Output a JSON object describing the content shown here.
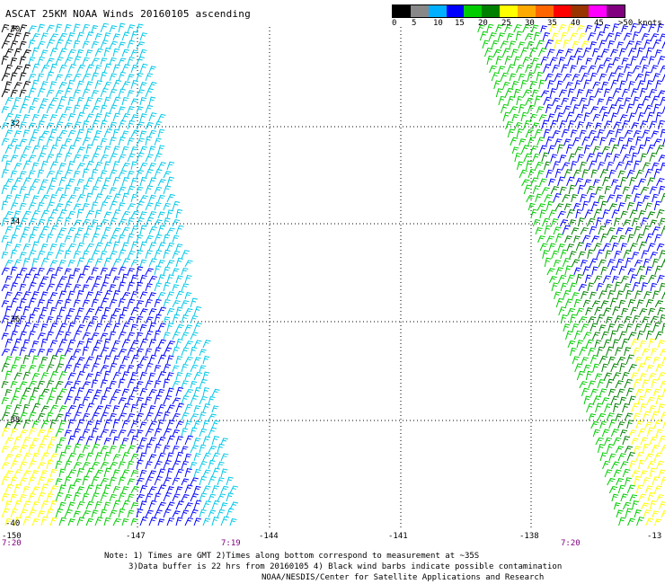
{
  "title": "ASCAT 25KM NOAA Winds 20160105 ascending",
  "legend": {
    "colors": [
      "#000000",
      "#888888",
      "#00b0ff",
      "#0000ff",
      "#00cc00",
      "#008000",
      "#ffff00",
      "#ffaa00",
      "#ff6600",
      "#ff0000",
      "#993300",
      "#ff00ff",
      "#800080"
    ],
    "labels": [
      "0",
      "5",
      "10",
      "15",
      "20",
      "25",
      "30",
      "35",
      "40",
      "45",
      ">50 knots"
    ]
  },
  "map": {
    "lat_labels": [
      "-30",
      "-32",
      "-34",
      "-36",
      "-38",
      "-40"
    ],
    "lon_labels": [
      "-150",
      "-147",
      "-144",
      "-141",
      "-138",
      "-13"
    ],
    "time_labels": [
      "7:20",
      "7:19",
      "7:20"
    ],
    "barb_colors": {
      "cyan": "#00c8e8",
      "blue": "#0000ff",
      "green": "#00cc00",
      "dark_green": "#008000",
      "yellow": "#ffff00",
      "black": "#000000"
    }
  },
  "notes": {
    "line1": "Note: 1) Times are GMT 2)Times along bottom correspond to measurement at ~35S",
    "line2": "3)Data buffer is 22 hrs from 20160105 4) Black wind barbs indicate possible contamination",
    "line3": "NOAA/NESDIS/Center for Satellite Applications and Research"
  }
}
